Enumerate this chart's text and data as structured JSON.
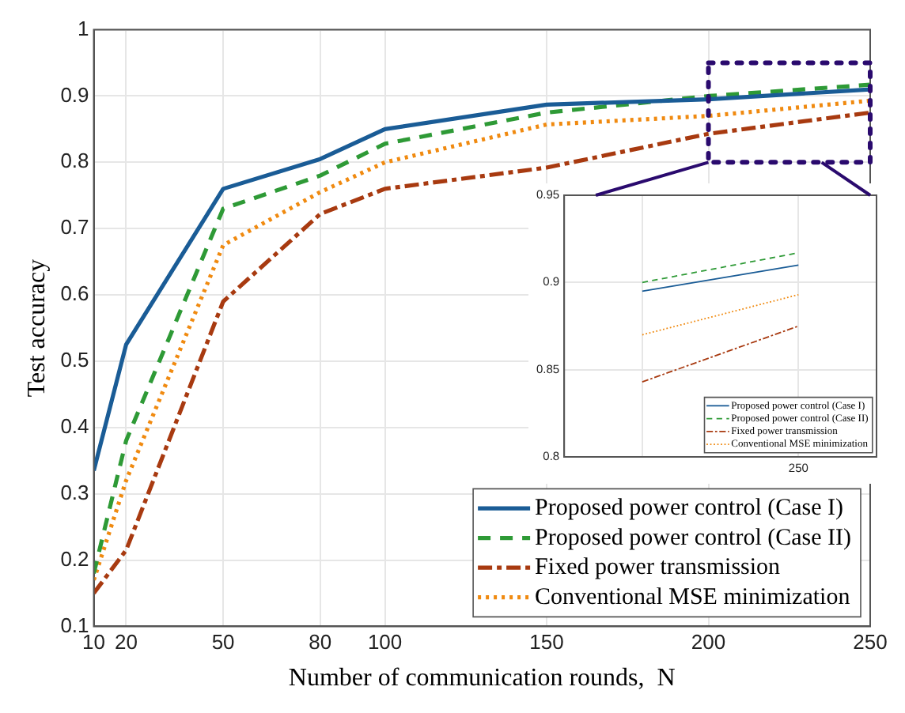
{
  "chart_data": [
    {
      "type": "line",
      "xlabel": "Number of communication rounds,  N",
      "ylabel": "Test accuracy",
      "x": [
        10,
        20,
        50,
        80,
        100,
        150,
        200,
        250
      ],
      "xlim": [
        10,
        250
      ],
      "xticks": [
        10,
        20,
        50,
        80,
        100,
        150,
        200,
        250
      ],
      "ylim": [
        0.1,
        1
      ],
      "yticks": [
        0.1,
        0.2,
        0.3,
        0.4,
        0.5,
        0.6,
        0.7,
        0.8,
        0.9,
        1
      ],
      "grid": true,
      "legend": "bottom right",
      "series": [
        {
          "name": "Proposed power control (Case I)",
          "color": "#1a5c96",
          "line_style": "solid",
          "values": [
            0.335,
            0.525,
            0.76,
            0.805,
            0.85,
            0.887,
            0.895,
            0.91
          ]
        },
        {
          "name": "Proposed power control (Case II)",
          "color": "#2e9a36",
          "line_style": "dashed",
          "values": [
            0.18,
            0.38,
            0.73,
            0.78,
            0.828,
            0.875,
            0.9,
            0.917
          ]
        },
        {
          "name": "Fixed power transmission",
          "color": "#a83a10",
          "line_style": "dashdot",
          "values": [
            0.15,
            0.215,
            0.59,
            0.722,
            0.76,
            0.792,
            0.843,
            0.875
          ]
        },
        {
          "name": "Conventional MSE minimization",
          "color": "#f08a10",
          "line_style": "dotted",
          "values": [
            0.17,
            0.32,
            0.675,
            0.755,
            0.8,
            0.857,
            0.87,
            0.893
          ]
        }
      ]
    },
    {
      "type": "line",
      "categories": [
        null,
        "250"
      ],
      "ylim": [
        0.8,
        0.95
      ],
      "yticks": [
        0.8,
        0.85,
        0.9,
        0.95
      ],
      "grid": true,
      "legend": "bottom right",
      "series": [
        {
          "name": "Proposed power control (Case I)",
          "color": "#1a5c96",
          "line_style": "solid",
          "values": [
            0.895,
            0.91
          ]
        },
        {
          "name": "Proposed power control (Case II)",
          "color": "#2e9a36",
          "line_style": "dashed",
          "values": [
            0.9,
            0.917
          ]
        },
        {
          "name": "Fixed power transmission",
          "color": "#a83a10",
          "line_style": "dashdot",
          "values": [
            0.843,
            0.875
          ]
        },
        {
          "name": "Conventional MSE minimization",
          "color": "#f08a10",
          "line_style": "dotted",
          "values": [
            0.87,
            0.893
          ]
        }
      ]
    }
  ]
}
